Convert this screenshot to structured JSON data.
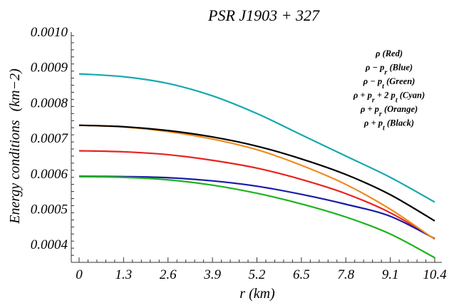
{
  "chart_data": {
    "type": "line",
    "title": "PSR J1903 + 327",
    "xlabel": "r (km)",
    "ylabel": "Energy conditions",
    "ylabel_unit": "(km−2)",
    "xlim": [
      0,
      10.4
    ],
    "ylim": [
      0.00035,
      0.001
    ],
    "xticks": [
      "0",
      "1.3",
      "2.6",
      "3.9",
      "5.2",
      "6.5",
      "7.8",
      "9.1",
      "10.4"
    ],
    "yticks": [
      "0.0004",
      "0.0005",
      "0.0006",
      "0.0007",
      "0.0008",
      "0.0009",
      "0.0010"
    ],
    "x": [
      0,
      1.3,
      2.6,
      3.9,
      5.2,
      6.5,
      7.8,
      9.1,
      10.4
    ],
    "legend_position": "top-right",
    "legend": [
      {
        "main": "ρ",
        "tag": "(Red)"
      },
      {
        "main": "ρ − p",
        "sub": "r",
        "tag": "(Blue)"
      },
      {
        "main": "ρ − p",
        "sub": "t",
        "tag": "(Green)"
      },
      {
        "main": "ρ + p",
        "sub": "r",
        "mid": " + 2 p",
        "sub2": "t",
        "tag": "(Cyan)"
      },
      {
        "main": "ρ + p",
        "sub": "r",
        "tag": "(Orange)"
      },
      {
        "main": "ρ + p",
        "sub": "t",
        "tag": "(Black)"
      }
    ],
    "series": [
      {
        "color": "#e8231e",
        "values": [
          0.000665,
          0.000662,
          0.000654,
          0.000638,
          0.000616,
          0.000584,
          0.000544,
          0.00049,
          0.000416
        ]
      },
      {
        "color": "#1a1aa8",
        "values": [
          0.000593,
          0.000592,
          0.000589,
          0.00058,
          0.000565,
          0.000542,
          0.000514,
          0.00048,
          0.000417
        ]
      },
      {
        "color": "#1db31d",
        "values": [
          0.000592,
          0.00059,
          0.000583,
          0.000568,
          0.000545,
          0.000515,
          0.000478,
          0.00043,
          0.000363
        ]
      },
      {
        "color": "#17a8b0",
        "values": [
          0.000882,
          0.000874,
          0.000855,
          0.00082,
          0.00077,
          0.00071,
          0.00065,
          0.00059,
          0.00052
        ]
      },
      {
        "color": "#f08a1e",
        "values": [
          0.000737,
          0.000732,
          0.000719,
          0.000698,
          0.000668,
          0.000624,
          0.00057,
          0.0005,
          0.000415
        ]
      },
      {
        "color": "#000000",
        "values": [
          0.000737,
          0.000733,
          0.000722,
          0.000704,
          0.000678,
          0.000642,
          0.000598,
          0.000541,
          0.000467
        ]
      }
    ]
  }
}
